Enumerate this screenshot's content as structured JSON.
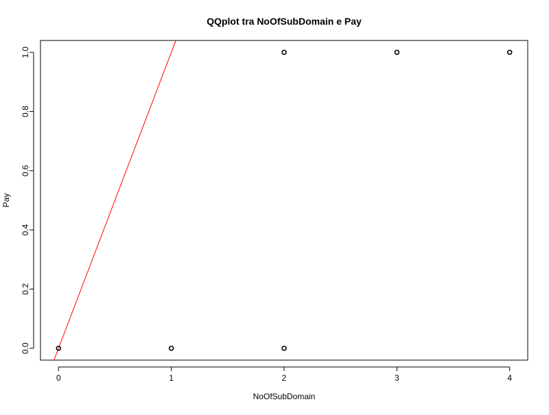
{
  "chart_data": {
    "type": "scatter",
    "title": "QQplot tra NoOfSubDomain e Pay",
    "xlabel": "NoOfSubDomain",
    "ylabel": "Pay",
    "xlim": [
      -0.16,
      4.16
    ],
    "ylim": [
      -0.04,
      1.04
    ],
    "x_ticks": [
      0,
      1,
      2,
      3,
      4
    ],
    "x_tick_labels": [
      "0",
      "1",
      "2",
      "3",
      "4"
    ],
    "y_ticks": [
      0.0,
      0.2,
      0.4,
      0.6,
      0.8,
      1.0
    ],
    "y_tick_labels": [
      "0.0",
      "0.2",
      "0.4",
      "0.6",
      "0.8",
      "1.0"
    ],
    "grid": false,
    "points": [
      {
        "x": 0,
        "y": 0
      },
      {
        "x": 1,
        "y": 0
      },
      {
        "x": 2,
        "y": 0
      },
      {
        "x": 2,
        "y": 1
      },
      {
        "x": 3,
        "y": 1
      },
      {
        "x": 4,
        "y": 1
      }
    ],
    "reference_line": {
      "intercept": 0,
      "slope": 1,
      "color": "#ff0000"
    },
    "point_color": "#000000"
  }
}
